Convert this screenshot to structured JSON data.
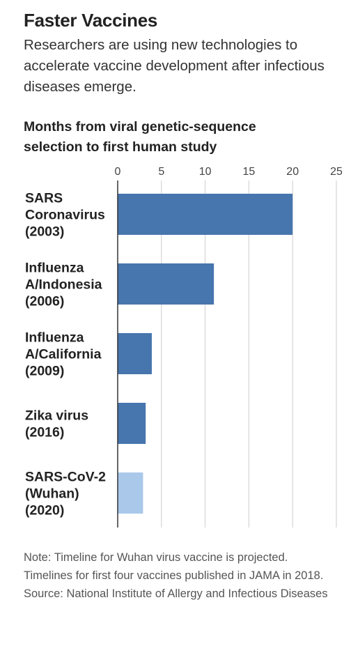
{
  "header": {
    "title": "Faster Vaccines",
    "subtitle": "Researchers are using new technologies to accelerate vaccine development after infectious diseases emerge."
  },
  "chart_data": {
    "type": "bar",
    "orientation": "horizontal",
    "title": "Months from viral genetic-sequence selection to first human study",
    "categories": [
      [
        "SARS",
        "Coronavirus",
        "(2003)"
      ],
      [
        "Influenza",
        "A/Indonesia",
        "(2006)"
      ],
      [
        "Influenza",
        "A/California",
        "(2009)"
      ],
      [
        "Zika virus",
        "(2016)"
      ],
      [
        "SARS-CoV-2",
        "(Wuhan)",
        "(2020)"
      ]
    ],
    "values": [
      20,
      11,
      3.9,
      3.2,
      2.9
    ],
    "projected": [
      false,
      false,
      false,
      false,
      true
    ],
    "xlim": [
      0,
      25
    ],
    "ticks": [
      0,
      5,
      10,
      15,
      20,
      25
    ],
    "grid": true,
    "colors": {
      "actual": "#4775ad",
      "projected": "#a9c8ea",
      "grid": "#cccccc",
      "axis": "#333333"
    }
  },
  "footer": {
    "note": "Note: Timeline for Wuhan virus vaccine is projected. Timelines for first four vaccines published in JAMA in 2018.",
    "source": "Source: National Institute of Allergy and Infectious Diseases"
  }
}
